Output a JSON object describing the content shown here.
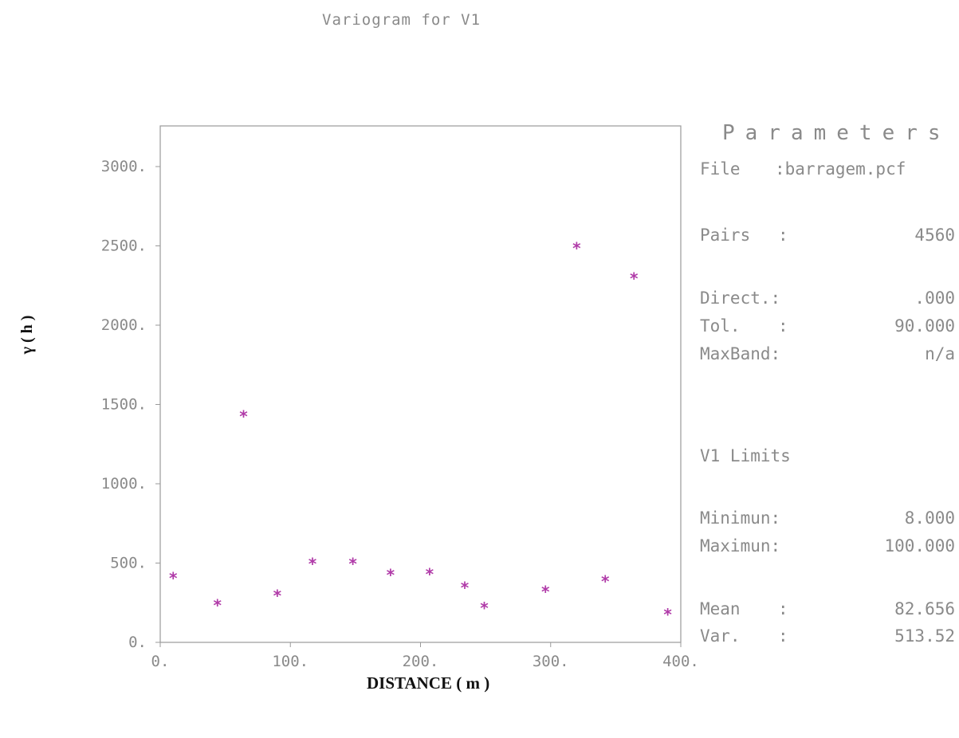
{
  "title": "Variogram for V1",
  "chart_data": {
    "type": "scatter",
    "title": "Variogram for V1",
    "xlabel": "DISTANCE ( m )",
    "ylabel": "γ ( h )",
    "xlim": [
      0,
      400
    ],
    "ylim": [
      0,
      3000
    ],
    "x_ticks": [
      "0.",
      "100.",
      "200.",
      "300.",
      "400."
    ],
    "y_ticks": [
      "0.",
      "500.",
      "1000.",
      "1500.",
      "2000.",
      "2500.",
      "3000."
    ],
    "marker": "*",
    "marker_color": "#b03aa8",
    "points": [
      {
        "x": 10,
        "y": 430
      },
      {
        "x": 44,
        "y": 260
      },
      {
        "x": 64,
        "y": 1450
      },
      {
        "x": 90,
        "y": 320
      },
      {
        "x": 117,
        "y": 520
      },
      {
        "x": 148,
        "y": 520
      },
      {
        "x": 177,
        "y": 450
      },
      {
        "x": 207,
        "y": 455
      },
      {
        "x": 234,
        "y": 370
      },
      {
        "x": 249,
        "y": 240
      },
      {
        "x": 296,
        "y": 345
      },
      {
        "x": 320,
        "y": 2510
      },
      {
        "x": 342,
        "y": 410
      },
      {
        "x": 364,
        "y": 2320
      },
      {
        "x": 390,
        "y": 200
      }
    ]
  },
  "parameters": {
    "heading": "Parameters",
    "file_label": "File",
    "file_value": ":barragem.pcf",
    "pairs_label": "Pairs",
    "pairs_value": "4560",
    "direct_label": "Direct.:",
    "direct_value": ".000",
    "tol_label": "Tol.",
    "tol_value": "90.000",
    "maxband_label": "MaxBand:",
    "maxband_value": "n/a",
    "limits_heading": "V1 Limits",
    "minimum_label": "Minimun:",
    "minimum_value": "8.000",
    "maximum_label": "Maximun:",
    "maximum_value": "100.000",
    "mean_label": "Mean",
    "mean_value": "82.656",
    "var_label": "Var.",
    "var_value": "513.52",
    "colon": ":"
  }
}
